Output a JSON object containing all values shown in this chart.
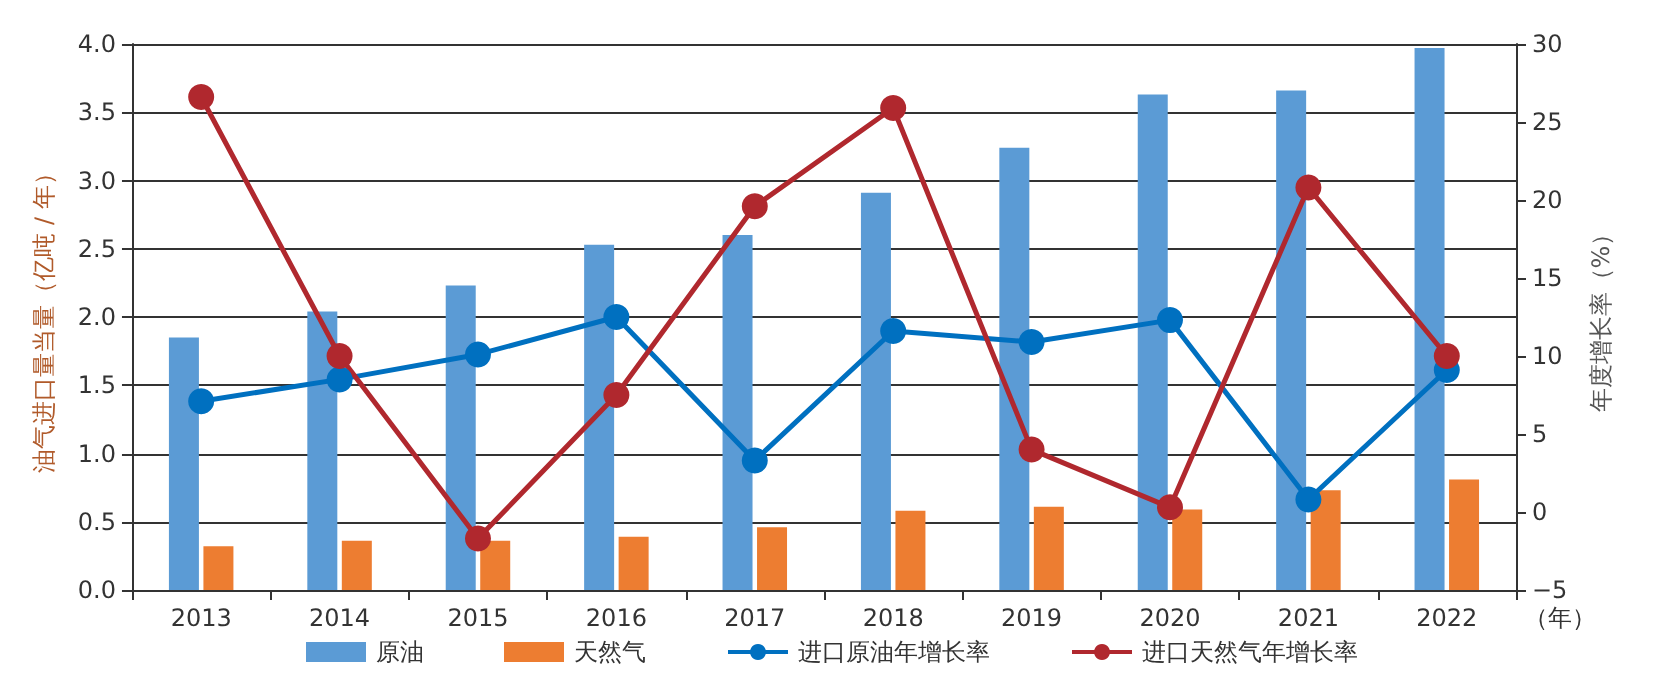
{
  "chart_data": {
    "type": "bar",
    "categories": [
      "2013",
      "2014",
      "2015",
      "2016",
      "2017",
      "2018",
      "2019",
      "2020",
      "2021",
      "2022"
    ],
    "xlabel": "（年）",
    "ylabel": "油气进口量当量（亿吨 / 年）",
    "y2label": "年度增长率（%）",
    "series": [
      {
        "name": "原油",
        "color": "#5b9bd5",
        "values": [
          1.85,
          2.04,
          2.23,
          2.53,
          2.6,
          2.91,
          3.24,
          3.63,
          3.66,
          3.97
        ]
      },
      {
        "name": "天然气",
        "color": "#ed7d31",
        "values": [
          0.32,
          0.36,
          0.36,
          0.39,
          0.46,
          0.58,
          0.61,
          0.59,
          0.73,
          0.81
        ]
      },
      {
        "name": "进口原油年增长率",
        "type": "line",
        "axis": "y2",
        "color": "#0070c0",
        "values": [
          7.1,
          8.5,
          10.1,
          12.5,
          3.3,
          11.6,
          10.9,
          12.3,
          0.8,
          9.1
        ]
      },
      {
        "name": "进口天然气年增长率",
        "type": "line",
        "axis": "y2",
        "color": "#b0282e",
        "values": [
          26.6,
          10.0,
          -1.7,
          7.5,
          19.6,
          25.9,
          4.0,
          0.3,
          20.8,
          10.0
        ]
      }
    ],
    "ylim": [
      0,
      4
    ],
    "yticks": [
      {
        "value": 0,
        "label": "0.0"
      },
      {
        "value": 0.5,
        "label": "0.5"
      },
      {
        "value": 1,
        "label": "1.0"
      },
      {
        "value": 1.5,
        "label": "1.5"
      },
      {
        "value": 2,
        "label": "2.0"
      },
      {
        "value": 2.5,
        "label": "2.5"
      },
      {
        "value": 3,
        "label": "3.0"
      },
      {
        "value": 3.5,
        "label": "3.5"
      },
      {
        "value": 4,
        "label": "4.0"
      }
    ],
    "y2lim": [
      -5,
      30
    ],
    "y2ticks": [
      {
        "value": -5,
        "label": "−5"
      },
      0,
      5,
      10,
      15,
      20,
      25,
      30
    ],
    "grid": "y",
    "legend": "bottom",
    "marker": "circle",
    "line_style": "solid"
  }
}
